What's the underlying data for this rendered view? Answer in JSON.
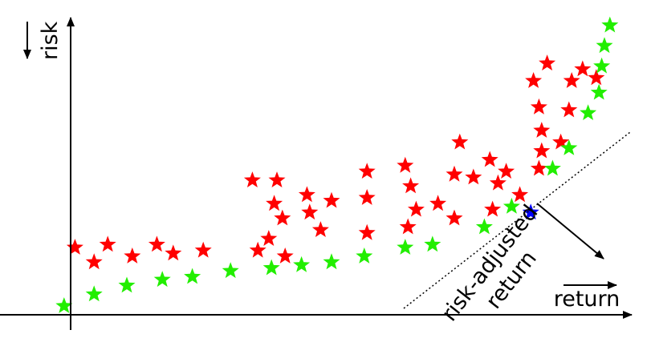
{
  "labels": {
    "y_axis": "risk",
    "x_axis": "return",
    "diagonal_line1": "risk-adjusted",
    "diagonal_line2": "return"
  },
  "colors": {
    "dominated": "#ff0000",
    "frontier": "#22ee00",
    "selected": "#0000ff",
    "axes": "#000000"
  },
  "icons": {
    "point_marker": "star",
    "axis_direction": "arrow"
  },
  "chart_data": {
    "type": "scatter",
    "xlim": [
      0,
      100
    ],
    "ylim": [
      0,
      100
    ],
    "series": [
      {
        "color": "dominated",
        "points": [
          [
            0.5,
            23
          ],
          [
            4,
            18
          ],
          [
            6.5,
            24
          ],
          [
            11,
            20
          ],
          [
            15.5,
            24
          ],
          [
            18.5,
            21
          ],
          [
            24,
            22
          ],
          [
            34,
            22
          ],
          [
            36,
            26
          ],
          [
            39,
            20
          ],
          [
            33,
            46
          ],
          [
            37.5,
            46
          ],
          [
            37,
            38
          ],
          [
            38.5,
            33
          ],
          [
            43,
            41
          ],
          [
            43.5,
            35
          ],
          [
            45.5,
            29
          ],
          [
            47.5,
            39
          ],
          [
            54,
            49
          ],
          [
            54,
            40
          ],
          [
            54,
            28
          ],
          [
            62,
            44
          ],
          [
            63,
            36
          ],
          [
            61,
            51
          ],
          [
            61.5,
            30
          ],
          [
            67,
            38
          ],
          [
            70,
            33
          ],
          [
            73.5,
            47
          ],
          [
            70,
            48
          ],
          [
            71,
            59
          ],
          [
            76.5,
            53
          ],
          [
            77,
            36
          ],
          [
            78,
            45
          ],
          [
            79.5,
            49
          ],
          [
            82,
            41
          ],
          [
            85.5,
            50
          ],
          [
            86,
            56
          ],
          [
            86,
            63
          ],
          [
            85.5,
            71
          ],
          [
            84.5,
            80
          ],
          [
            87,
            86
          ],
          [
            89.5,
            59
          ],
          [
            91,
            70
          ],
          [
            91.5,
            80
          ],
          [
            93.5,
            84
          ],
          [
            96,
            81
          ]
        ]
      },
      {
        "color": "frontier",
        "points": [
          [
            -1.5,
            3
          ],
          [
            4,
            7
          ],
          [
            10,
            10
          ],
          [
            16.5,
            12
          ],
          [
            22,
            13
          ],
          [
            29,
            15
          ],
          [
            36.5,
            16
          ],
          [
            42,
            17
          ],
          [
            47.5,
            18
          ],
          [
            53.5,
            20
          ],
          [
            61,
            23
          ],
          [
            66,
            24
          ],
          [
            75.5,
            30
          ],
          [
            80.5,
            37
          ],
          [
            88,
            50
          ],
          [
            91,
            57
          ],
          [
            94.5,
            69
          ],
          [
            96.5,
            76
          ],
          [
            97,
            85
          ],
          [
            97.5,
            92
          ],
          [
            98.5,
            99
          ]
        ]
      },
      {
        "color": "selected",
        "points": [
          [
            84,
            35
          ]
        ]
      }
    ]
  }
}
